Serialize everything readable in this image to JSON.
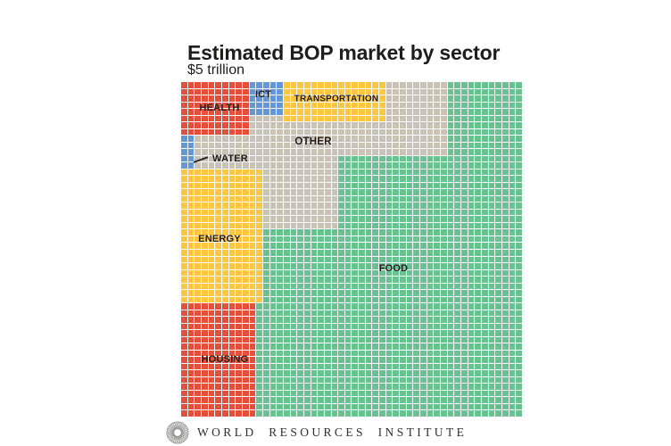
{
  "chart_data": {
    "type": "waffle",
    "title": "Estimated BOP market by sector",
    "subtitle": "$5 trillion",
    "total_market": "$5 trillion",
    "grid": {
      "rows": 50,
      "cols": 50
    },
    "unit_per_cell_usd_billion": 2,
    "base_sector": "food",
    "sectors": [
      {
        "id": "health",
        "label": "HEALTH",
        "color": "#E5503C",
        "cells": 80,
        "est_value_usd_billion": 160
      },
      {
        "id": "ict",
        "label": "ICT",
        "color": "#6397DA",
        "cells": 25,
        "est_value_usd_billion": 50
      },
      {
        "id": "transportation",
        "label": "TRANSPORTATION",
        "color": "#FCC640",
        "cells": 90,
        "est_value_usd_billion": 180
      },
      {
        "id": "other",
        "label": "OTHER",
        "color": "#C9C2B7",
        "cells": 369,
        "est_value_usd_billion": 738
      },
      {
        "id": "water",
        "label": "WATER",
        "color": "#6397DA",
        "cells": 10,
        "est_value_usd_billion": 20
      },
      {
        "id": "energy",
        "label": "ENERGY",
        "color": "#FCC640",
        "cells": 240,
        "est_value_usd_billion": 480
      },
      {
        "id": "housing",
        "label": "HOUSING",
        "color": "#E5503C",
        "cells": 187,
        "est_value_usd_billion": 374
      },
      {
        "id": "food",
        "label": "FOOD",
        "color": "#6AC192",
        "cells": 1499,
        "est_value_usd_billion": 2998
      }
    ],
    "regions": [
      {
        "sector": "other",
        "rows": [
          1,
          11
        ],
        "cols": [
          1,
          39
        ]
      },
      {
        "sector": "other",
        "rows": [
          12,
          22
        ],
        "cols": [
          1,
          23
        ]
      },
      {
        "sector": "health",
        "rows": [
          1,
          8
        ],
        "cols": [
          1,
          10
        ]
      },
      {
        "sector": "ict",
        "rows": [
          1,
          5
        ],
        "cols": [
          11,
          15
        ]
      },
      {
        "sector": "transportation",
        "rows": [
          1,
          6
        ],
        "cols": [
          16,
          30
        ]
      },
      {
        "sector": "water",
        "rows": [
          9,
          13
        ],
        "cols": [
          1,
          2
        ]
      },
      {
        "sector": "energy",
        "rows": [
          14,
          33
        ],
        "cols": [
          1,
          12
        ]
      },
      {
        "sector": "housing",
        "rows": [
          34,
          50
        ],
        "cols": [
          1,
          11
        ]
      }
    ],
    "gridline_color": "#ffffff",
    "legend_position": "none"
  },
  "footer": {
    "logo_text": "WORLD RESOURCES INSTITUTE",
    "logo_icon": "rosette-flower-icon",
    "logo_color": "#9a9a98"
  }
}
